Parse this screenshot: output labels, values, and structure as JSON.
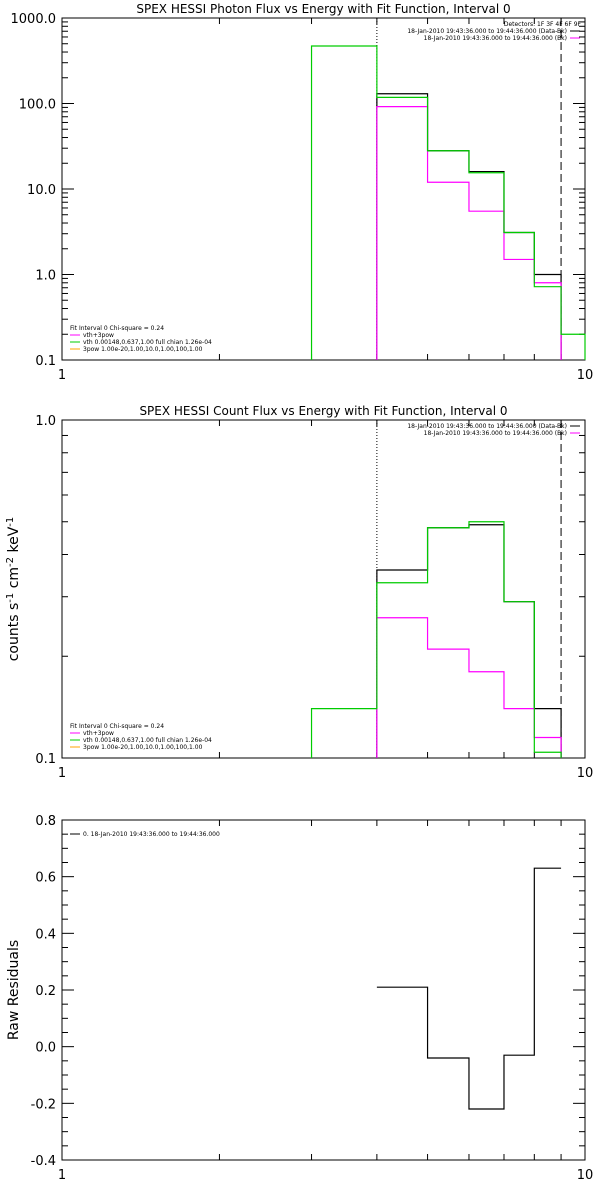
{
  "chart_data": [
    {
      "type": "line",
      "title": "SPEX HESSI Photon Flux vs Energy with Fit Function, Interval 0",
      "ylabel": "",
      "xscale": "log",
      "yscale": "log",
      "xlim": [
        1,
        10
      ],
      "ylim": [
        0.1,
        1000
      ],
      "xticklabels": [
        "1",
        "10"
      ],
      "yticklabels": [
        "0.1",
        "1.0",
        "10.0",
        "100.0",
        "1000.0"
      ],
      "bin_edges": [
        3,
        4,
        5,
        6,
        7,
        8,
        9,
        10
      ],
      "series": [
        {
          "name": "",
          "color": "#000000",
          "values": [
            null,
            130,
            28,
            16,
            3.1,
            1.0,
            null
          ]
        },
        {
          "name": "vth+3pow",
          "color": "#ff00ff",
          "values": [
            null,
            92,
            12,
            5.5,
            1.5,
            0.8,
            null
          ]
        },
        {
          "name": "vth 0.00148,0.637,1.00 full chian 1.26e-04",
          "color": "#00cc00",
          "values": [
            470,
            118,
            28,
            15.5,
            3.1,
            0.72,
            0.2
          ]
        }
      ],
      "fit_range": [
        4,
        9.0
      ],
      "detectors_label": "Detectors: 1F 3F 4F 6F 9F",
      "legend_right": [
        {
          "text": "18-Jan-2010 19:43:36.000 to 19:44:36.000 (Data-Bk)",
          "color": "#000000"
        },
        {
          "text": "18-Jan-2010 19:43:36.000 to 19:44:36.000 (Bk)",
          "color": "#ff00ff"
        }
      ],
      "legend_left_title": "Fit Interval 0   Chi-square = 0.24",
      "legend_left": [
        {
          "text": "vth+3pow",
          "color": "#ff00ff"
        },
        {
          "text": "vth 0.00148,0.637,1.00  full chian 1.26e-04",
          "color": "#00cc00"
        },
        {
          "text": "3pow 1.00e-20,1.00,10.0,1.00,100,1.00",
          "color": "#ffa500"
        }
      ]
    },
    {
      "type": "line",
      "title": "SPEX HESSI Count Flux vs Energy with Fit Function, Interval 0",
      "ylabel": "counts s^-1 cm^-2 keV^-1",
      "ylabel_parts": [
        "counts s",
        "-1",
        " cm",
        "-2",
        " keV",
        "-1"
      ],
      "xscale": "log",
      "yscale": "log",
      "xlim": [
        1,
        10
      ],
      "ylim": [
        0.1,
        1.0
      ],
      "xticklabels": [
        "1",
        "10"
      ],
      "yticklabels": [
        "0.1",
        "1.0"
      ],
      "bin_edges": [
        3,
        4,
        5,
        6,
        7,
        8,
        9
      ],
      "series": [
        {
          "name": "",
          "color": "#000000",
          "values": [
            null,
            0.36,
            0.48,
            0.49,
            0.29,
            0.14
          ]
        },
        {
          "name": "vth+3pow",
          "color": "#ff00ff",
          "values": [
            null,
            0.26,
            0.21,
            0.18,
            0.14,
            0.115
          ]
        },
        {
          "name": "vth 0.00148,0.637,1.00 full chian 1.26e-04",
          "color": "#00cc00",
          "values": [
            0.14,
            0.33,
            0.48,
            0.5,
            0.29,
            0.104
          ]
        }
      ],
      "fit_range": [
        4,
        9.0
      ],
      "legend_right": [
        {
          "text": "18-Jan-2010 19:43:36.000 to 19:44:36.000 (Data-Bk)",
          "color": "#000000"
        },
        {
          "text": "18-Jan-2010 19:43:36.000 to 19:44:36.000 (Bk)",
          "color": "#ff00ff"
        }
      ],
      "legend_left_title": "Fit Interval 0   Chi-square = 0.24",
      "legend_left": [
        {
          "text": "vth+3pow",
          "color": "#ff00ff"
        },
        {
          "text": "vth 0.00148,0.637,1.00  full chian 1.26e-04",
          "color": "#00cc00"
        },
        {
          "text": "3pow 1.00e-20,1.00,10.0,1.00,100,1.00",
          "color": "#ffa500"
        }
      ]
    },
    {
      "type": "line",
      "title": "",
      "ylabel": "Raw Residuals",
      "xscale": "log",
      "yscale": "linear",
      "xlim": [
        1,
        10
      ],
      "ylim": [
        -0.4,
        0.8
      ],
      "xticklabels": [
        "1",
        "10"
      ],
      "yticks": [
        -0.4,
        -0.2,
        0.0,
        0.2,
        0.4,
        0.6,
        0.8
      ],
      "yticklabels": [
        "-0.4",
        "-0.2",
        "0.0",
        "0.2",
        "0.4",
        "0.6",
        "0.8"
      ],
      "bin_edges": [
        4,
        5,
        6,
        7,
        8,
        9
      ],
      "series": [
        {
          "name": "0. 18-Jan-2010 19:43:36.000 to 19:44:36.000",
          "color": "#000000",
          "values": [
            0.21,
            -0.04,
            -0.22,
            -0.03,
            0.63
          ]
        }
      ],
      "legend_left": [
        {
          "text": "0. 18-Jan-2010 19:43:36.000 to 19:44:36.000",
          "color": "#000000"
        }
      ]
    }
  ]
}
